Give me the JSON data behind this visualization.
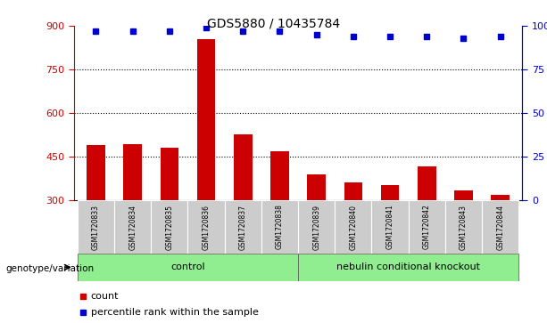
{
  "title": "GDS5880 / 10435784",
  "samples": [
    "GSM1720833",
    "GSM1720834",
    "GSM1720835",
    "GSM1720836",
    "GSM1720837",
    "GSM1720838",
    "GSM1720839",
    "GSM1720840",
    "GSM1720841",
    "GSM1720842",
    "GSM1720843",
    "GSM1720844"
  ],
  "counts": [
    490,
    493,
    482,
    855,
    528,
    468,
    388,
    360,
    352,
    415,
    333,
    318
  ],
  "percentiles": [
    97,
    97,
    97,
    99,
    97,
    97,
    95,
    94,
    94,
    94,
    93,
    94
  ],
  "ylim_left": [
    300,
    900
  ],
  "ylim_right": [
    0,
    100
  ],
  "yticks_left": [
    300,
    450,
    600,
    750,
    900
  ],
  "yticks_right": [
    0,
    25,
    50,
    75,
    100
  ],
  "bar_color": "#cc0000",
  "dot_color": "#0000cc",
  "bg_sample_header": "#cccccc",
  "bg_group": "#90ee90",
  "label_count": "count",
  "label_percentile": "percentile rank within the sample",
  "genotype_label": "genotype/variation",
  "control_label": "control",
  "ko_label": "nebulin conditional knockout",
  "n_control": 6,
  "n_ko": 6
}
